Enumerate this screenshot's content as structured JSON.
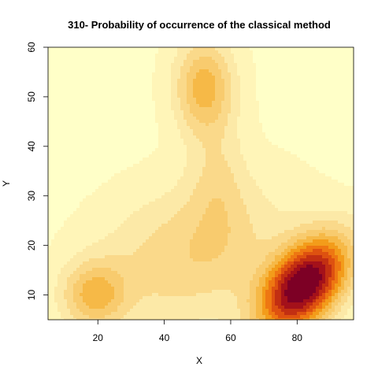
{
  "chart_data": {
    "type": "heatmap",
    "title": "310- Probability of occurrence of the classical method",
    "xlabel": "X",
    "ylabel": "Y",
    "xlim": [
      5,
      97
    ],
    "ylim": [
      5,
      60
    ],
    "x_ticks": [
      20,
      40,
      60,
      80
    ],
    "y_ticks": [
      10,
      20,
      30,
      40,
      50,
      60
    ],
    "palette": [
      "#FFFFC8",
      "#FFF5B8",
      "#FCE9A7",
      "#FAD98A",
      "#F8CB6E",
      "#F6B947",
      "#F39C1A",
      "#EE7712",
      "#DE5110",
      "#C22F12",
      "#A4111A",
      "#7D0025"
    ],
    "density_peaks": [
      {
        "x": 82,
        "y": 12,
        "level": 1.0
      },
      {
        "x": 19,
        "y": 10,
        "level": 0.33
      },
      {
        "x": 52,
        "y": 52,
        "level": 0.36
      },
      {
        "x": 48,
        "y": 18,
        "level": 0.23
      }
    ],
    "grid": false,
    "legend": "none"
  }
}
